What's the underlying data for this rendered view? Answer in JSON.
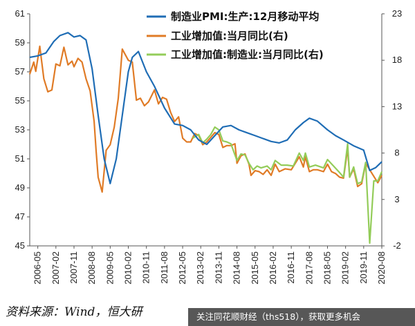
{
  "chart_data": {
    "type": "line",
    "legend_position": "top-right",
    "grid": false,
    "x_ticks": [
      "2006-05",
      "2007-02",
      "2007-11",
      "2008-08",
      "2009-05",
      "2010-02",
      "2010-11",
      "2011-08",
      "2012-05",
      "2013-02",
      "2013-11",
      "2014-08",
      "2015-05",
      "2016-02",
      "2016-11",
      "2017-08",
      "2018-05",
      "2019-02",
      "2019-11",
      "2020-08"
    ],
    "y_left": {
      "ticks": [
        "45",
        "47",
        "49",
        "51",
        "53",
        "55",
        "57",
        "59",
        "61"
      ],
      "range": [
        45,
        61
      ]
    },
    "y_right": {
      "ticks": [
        "-2",
        "3",
        "8",
        "13",
        "18",
        "23"
      ],
      "range": [
        -2,
        23
      ]
    },
    "series": [
      {
        "name": "制造业PMI:生产:12月移动平均",
        "axis": "left",
        "color": "#1f6db5",
        "points": [
          [
            "2006-01",
            58.0
          ],
          [
            "2006-05",
            58.1
          ],
          [
            "2006-09",
            58.3
          ],
          [
            "2007-01",
            59.1
          ],
          [
            "2007-04",
            59.5
          ],
          [
            "2007-08",
            59.7
          ],
          [
            "2007-11",
            59.4
          ],
          [
            "2008-02",
            59.5
          ],
          [
            "2008-05",
            59.2
          ],
          [
            "2008-08",
            57.2
          ],
          [
            "2008-11",
            54.0
          ],
          [
            "2009-02",
            51.0
          ],
          [
            "2009-05",
            49.3
          ],
          [
            "2009-08",
            51.0
          ],
          [
            "2009-11",
            54.0
          ],
          [
            "2010-02",
            57.0
          ],
          [
            "2010-04",
            58.0
          ],
          [
            "2010-07",
            58.4
          ],
          [
            "2010-11",
            57.0
          ],
          [
            "2011-03",
            56.0
          ],
          [
            "2011-08",
            54.5
          ],
          [
            "2012-01",
            53.4
          ],
          [
            "2012-05",
            53.3
          ],
          [
            "2012-09",
            53.0
          ],
          [
            "2013-01",
            52.3
          ],
          [
            "2013-05",
            52.0
          ],
          [
            "2013-09",
            52.6
          ],
          [
            "2014-01",
            53.2
          ],
          [
            "2014-05",
            53.3
          ],
          [
            "2014-09",
            53.0
          ],
          [
            "2015-01",
            52.8
          ],
          [
            "2015-05",
            52.6
          ],
          [
            "2015-09",
            52.4
          ],
          [
            "2016-01",
            52.2
          ],
          [
            "2016-05",
            52.1
          ],
          [
            "2016-09",
            52.3
          ],
          [
            "2017-01",
            53.0
          ],
          [
            "2017-05",
            53.5
          ],
          [
            "2017-08",
            53.8
          ],
          [
            "2017-12",
            53.6
          ],
          [
            "2018-05",
            53.0
          ],
          [
            "2018-09",
            52.6
          ],
          [
            "2019-01",
            52.3
          ],
          [
            "2019-06",
            51.9
          ],
          [
            "2019-11",
            51.6
          ],
          [
            "2020-02",
            50.2
          ],
          [
            "2020-05",
            50.4
          ],
          [
            "2020-08",
            50.8
          ]
        ]
      },
      {
        "name": "工业增加值:当月同比(右)",
        "axis": "right",
        "color": "#e07b26",
        "points": [
          [
            "2006-01",
            16.5
          ],
          [
            "2006-03",
            17.8
          ],
          [
            "2006-04",
            16.8
          ],
          [
            "2006-06",
            19.5
          ],
          [
            "2006-08",
            16.0
          ],
          [
            "2006-10",
            14.6
          ],
          [
            "2006-12",
            14.8
          ],
          [
            "2007-02",
            17.6
          ],
          [
            "2007-04",
            17.4
          ],
          [
            "2007-06",
            19.4
          ],
          [
            "2007-08",
            17.5
          ],
          [
            "2007-10",
            17.9
          ],
          [
            "2007-11",
            17.3
          ],
          [
            "2008-01",
            18.2
          ],
          [
            "2008-03",
            17.8
          ],
          [
            "2008-05",
            16.0
          ],
          [
            "2008-07",
            14.7
          ],
          [
            "2008-09",
            11.4
          ],
          [
            "2008-10",
            8.2
          ],
          [
            "2008-11",
            5.4
          ],
          [
            "2009-01",
            3.8
          ],
          [
            "2009-03",
            8.3
          ],
          [
            "2009-05",
            8.9
          ],
          [
            "2009-07",
            10.8
          ],
          [
            "2009-09",
            13.9
          ],
          [
            "2009-11",
            19.2
          ],
          [
            "2010-02",
            18.0
          ],
          [
            "2010-04",
            17.8
          ],
          [
            "2010-06",
            13.7
          ],
          [
            "2010-08",
            13.9
          ],
          [
            "2010-10",
            13.1
          ],
          [
            "2010-12",
            13.5
          ],
          [
            "2011-03",
            14.8
          ],
          [
            "2011-05",
            13.3
          ],
          [
            "2011-07",
            14.0
          ],
          [
            "2011-09",
            13.8
          ],
          [
            "2011-11",
            12.4
          ],
          [
            "2012-01",
            11.4
          ],
          [
            "2012-03",
            11.9
          ],
          [
            "2012-05",
            9.6
          ],
          [
            "2012-07",
            9.2
          ],
          [
            "2012-09",
            9.2
          ],
          [
            "2012-11",
            10.1
          ],
          [
            "2013-01",
            9.9
          ],
          [
            "2013-03",
            8.9
          ],
          [
            "2013-05",
            9.2
          ],
          [
            "2013-07",
            9.7
          ],
          [
            "2013-09",
            10.2
          ],
          [
            "2013-11",
            10.0
          ],
          [
            "2014-01",
            8.6
          ],
          [
            "2014-03",
            8.8
          ],
          [
            "2014-05",
            8.8
          ],
          [
            "2014-07",
            9.0
          ],
          [
            "2014-08",
            6.9
          ],
          [
            "2014-10",
            7.7
          ],
          [
            "2014-12",
            7.9
          ],
          [
            "2015-02",
            6.8
          ],
          [
            "2015-03",
            5.6
          ],
          [
            "2015-05",
            6.1
          ],
          [
            "2015-07",
            6.0
          ],
          [
            "2015-09",
            5.7
          ],
          [
            "2015-11",
            6.2
          ],
          [
            "2016-01",
            5.6
          ],
          [
            "2016-03",
            6.8
          ],
          [
            "2016-05",
            6.0
          ],
          [
            "2016-08",
            6.3
          ],
          [
            "2016-11",
            6.2
          ],
          [
            "2017-03",
            7.6
          ],
          [
            "2017-05",
            6.5
          ],
          [
            "2017-06",
            7.6
          ],
          [
            "2017-08",
            6.0
          ],
          [
            "2017-10",
            6.2
          ],
          [
            "2017-12",
            6.2
          ],
          [
            "2018-03",
            6.0
          ],
          [
            "2018-05",
            6.8
          ],
          [
            "2018-07",
            6.0
          ],
          [
            "2018-09",
            5.8
          ],
          [
            "2018-11",
            5.4
          ],
          [
            "2019-01",
            5.3
          ],
          [
            "2019-03",
            8.5
          ],
          [
            "2019-04",
            5.4
          ],
          [
            "2019-06",
            6.3
          ],
          [
            "2019-08",
            4.4
          ],
          [
            "2019-10",
            4.7
          ],
          [
            "2019-12",
            6.9
          ],
          [
            "2020-06",
            4.8
          ],
          [
            "2020-08",
            5.6
          ]
        ]
      },
      {
        "name": "工业增加值:制造业:当月同比(右)",
        "axis": "right",
        "color": "#93cc59",
        "points": [
          [
            "2012-10",
            9.6
          ],
          [
            "2013-01",
            10.0
          ],
          [
            "2013-03",
            9.1
          ],
          [
            "2013-05",
            9.5
          ],
          [
            "2013-07",
            10.0
          ],
          [
            "2013-09",
            10.8
          ],
          [
            "2013-11",
            10.5
          ],
          [
            "2014-01",
            9.3
          ],
          [
            "2014-03",
            9.2
          ],
          [
            "2014-05",
            9.0
          ],
          [
            "2014-08",
            7.2
          ],
          [
            "2014-10",
            7.9
          ],
          [
            "2014-12",
            7.8
          ],
          [
            "2015-02",
            6.9
          ],
          [
            "2015-04",
            6.2
          ],
          [
            "2015-06",
            6.6
          ],
          [
            "2015-08",
            6.4
          ],
          [
            "2015-11",
            6.6
          ],
          [
            "2016-01",
            6.2
          ],
          [
            "2016-03",
            7.2
          ],
          [
            "2016-06",
            6.7
          ],
          [
            "2016-09",
            6.7
          ],
          [
            "2016-12",
            6.6
          ],
          [
            "2017-03",
            8.0
          ],
          [
            "2017-05",
            7.2
          ],
          [
            "2017-06",
            8.0
          ],
          [
            "2017-08",
            6.5
          ],
          [
            "2017-11",
            6.7
          ],
          [
            "2018-03",
            6.4
          ],
          [
            "2018-05",
            7.3
          ],
          [
            "2018-08",
            6.6
          ],
          [
            "2018-11",
            5.9
          ],
          [
            "2019-01",
            5.4
          ],
          [
            "2019-03",
            9.0
          ],
          [
            "2019-04",
            5.4
          ],
          [
            "2019-06",
            6.5
          ],
          [
            "2019-08",
            4.7
          ],
          [
            "2019-10",
            4.9
          ],
          [
            "2019-12",
            7.0
          ],
          [
            "2020-02",
            -1.7
          ],
          [
            "2020-04",
            5.0
          ],
          [
            "2020-06",
            5.0
          ],
          [
            "2020-08",
            6.0
          ]
        ]
      }
    ]
  },
  "source_note": "资料来源：Wind，恒大研",
  "watermark_banner": "关注同花顺财经（ths518），获取更多机会"
}
